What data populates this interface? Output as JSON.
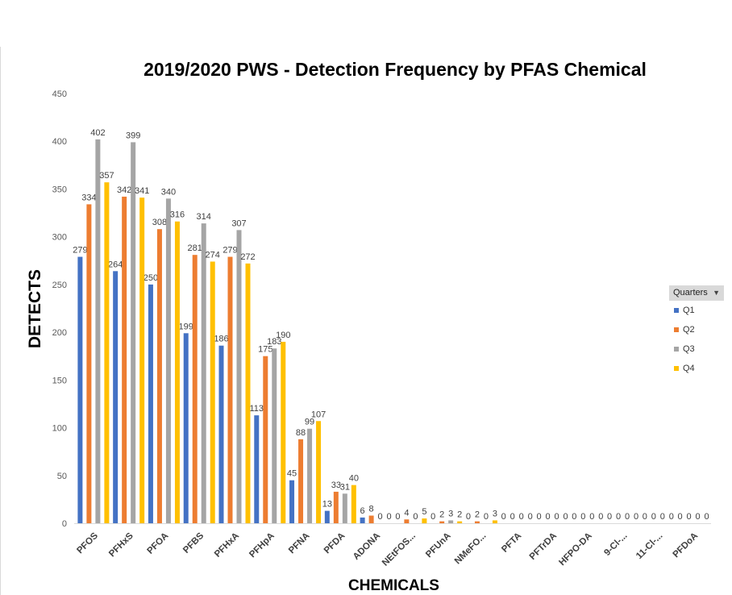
{
  "chart_data": {
    "type": "bar",
    "title": "2019/2020 PWS - Detection Frequency by PFAS Chemical",
    "xlabel": "CHEMICALS",
    "ylabel": "DETECTS",
    "ylim": [
      0,
      450
    ],
    "yticks": [
      "0",
      "50",
      "100",
      "150",
      "200",
      "250",
      "300",
      "350",
      "400",
      "450"
    ],
    "categories": [
      "PFOS",
      "PFHxS",
      "PFOA",
      "PFBS",
      "PFHxA",
      "PFHpA",
      "PFNA",
      "PFDA",
      "ADONA",
      "NEtFOS...",
      "PFUnA",
      "NMeFO...",
      "PFTA",
      "PFTrDA",
      "HFPO-DA",
      "9-Cl-...",
      "11-Cl-...",
      "PFDoA"
    ],
    "series": [
      {
        "name": "Q1",
        "color": "#4472c4",
        "values": [
          279,
          264,
          250,
          199,
          186,
          113,
          45,
          13,
          6,
          0,
          0,
          0,
          0,
          0,
          0,
          0,
          0,
          0
        ]
      },
      {
        "name": "Q2",
        "color": "#ed7d31",
        "values": [
          334,
          342,
          308,
          281,
          279,
          175,
          88,
          33,
          8,
          4,
          2,
          2,
          0,
          0,
          0,
          0,
          0,
          0
        ]
      },
      {
        "name": "Q3",
        "color": "#a5a5a5",
        "values": [
          402,
          399,
          340,
          314,
          307,
          183,
          99,
          31,
          0,
          0,
          3,
          0,
          0,
          0,
          0,
          0,
          0,
          0
        ]
      },
      {
        "name": "Q4",
        "color": "#ffc000",
        "values": [
          357,
          341,
          316,
          274,
          272,
          190,
          107,
          40,
          0,
          5,
          2,
          3,
          0,
          0,
          0,
          0,
          0,
          0
        ]
      }
    ],
    "grid": false,
    "legend": {
      "title": "Quarters",
      "placement": "right"
    }
  }
}
